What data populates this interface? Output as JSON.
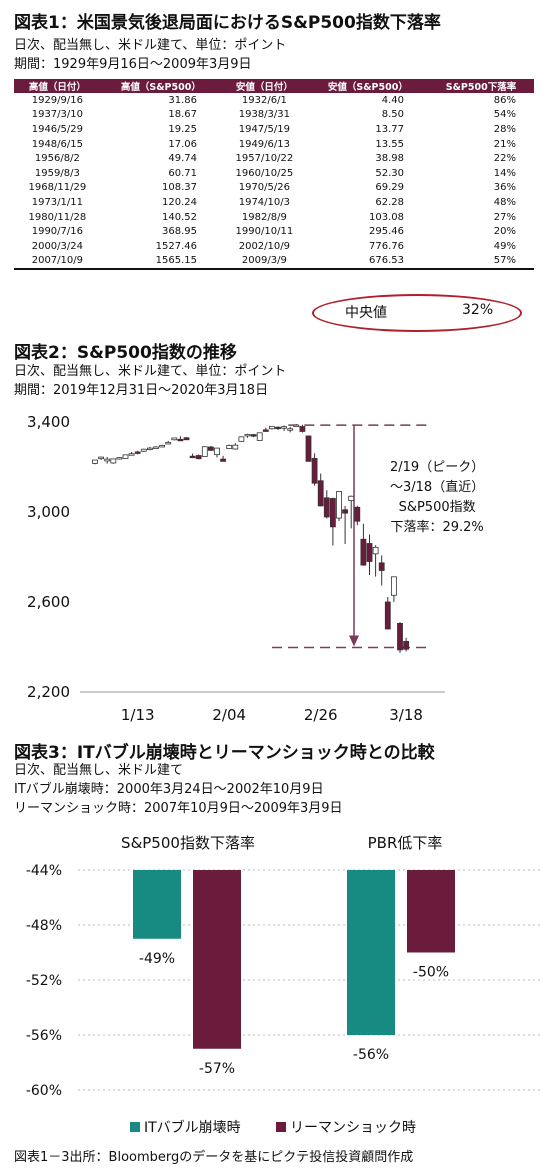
{
  "fig1": {
    "title": "図表1：米国景気後退局面におけるS&P500指数下落率",
    "sub1": "日次、配当無し、米ドル建て、単位：ポイント",
    "sub2": "期間：1929年9月16日～2009年3月9日",
    "headers": [
      "高値（日付）",
      "高値（S&P500）",
      "安値（日付）",
      "安値（S&P500）",
      "S&P500下落率"
    ],
    "rows": [
      [
        "1929/9/16",
        "31.86",
        "1932/6/1",
        "4.40",
        "86%"
      ],
      [
        "1937/3/10",
        "18.67",
        "1938/3/31",
        "8.50",
        "54%"
      ],
      [
        "1946/5/29",
        "19.25",
        "1947/5/19",
        "13.77",
        "28%"
      ],
      [
        "1948/6/15",
        "17.06",
        "1949/6/13",
        "13.55",
        "21%"
      ],
      [
        "1956/8/2",
        "49.74",
        "1957/10/22",
        "38.98",
        "22%"
      ],
      [
        "1959/8/3",
        "60.71",
        "1960/10/25",
        "52.30",
        "14%"
      ],
      [
        "1968/11/29",
        "108.37",
        "1970/5/26",
        "69.29",
        "36%"
      ],
      [
        "1973/1/11",
        "120.24",
        "1974/10/3",
        "62.28",
        "48%"
      ],
      [
        "1980/11/28",
        "140.52",
        "1982/8/9",
        "103.08",
        "27%"
      ],
      [
        "1990/7/16",
        "368.95",
        "1990/10/11",
        "295.46",
        "20%"
      ],
      [
        "2000/3/24",
        "1527.46",
        "2002/10/9",
        "776.76",
        "49%"
      ],
      [
        "2007/10/9",
        "1565.15",
        "2009/3/9",
        "676.53",
        "57%"
      ]
    ],
    "median_label": "中央値",
    "median_value": "32%"
  },
  "fig2": {
    "title": "図表2：S&P500指数の推移",
    "sub1": "日次、配当無し、米ドル建て、単位：ポイント",
    "sub2": "期間：2019年12月31日～2020年3月18日",
    "annotation": [
      "2/19（ピーク）",
      "～3/18（直近）",
      "S&P500指数",
      "下落率：29.2%"
    ]
  },
  "fig3": {
    "title": "図表3：ITバブル崩壊時とリーマンショック時との比較",
    "sub1": "日次、配当無し、米ドル建て",
    "sub2": "ITバブル崩壊時：2000年3月24日～2002年10月9日",
    "sub3": "リーマンショック時：2007年10月9日～2009年3月9日",
    "legend": [
      "ITバブル崩壊時",
      "リーマンショック時"
    ]
  },
  "source": "図表1－3出所：Bloombergのデータを基にピクテ投信投資顧問作成",
  "colors": {
    "accent": "#6b1b3b",
    "teal": "#178a82",
    "median_ring": "#b0202a",
    "dashed": "#7a3a5a"
  },
  "chart_data": [
    {
      "type": "candlestick",
      "x_tick_labels": [
        "1/13",
        "2/04",
        "2/26",
        "3/18"
      ],
      "ylim": [
        2200,
        3400
      ],
      "y_ticks": [
        2200,
        2600,
        3000,
        3400
      ],
      "y_tick_labels": [
        "2,200",
        "2,600",
        "3,000",
        "3,400"
      ],
      "peak_level": 3386,
      "trough_level": 2398,
      "candles": [
        [
          3216,
          3231,
          3212,
          3231
        ],
        [
          3237,
          3246,
          3231,
          3244
        ],
        [
          3227,
          3245,
          3215,
          3235
        ],
        [
          3218,
          3238,
          3214,
          3236
        ],
        [
          3242,
          3244,
          3233,
          3242
        ],
        [
          3238,
          3254,
          3237,
          3254
        ],
        [
          3257,
          3267,
          3254,
          3259
        ],
        [
          3267,
          3272,
          3256,
          3266
        ],
        [
          3270,
          3282,
          3267,
          3279
        ],
        [
          3281,
          3289,
          3274,
          3284
        ],
        [
          3286,
          3293,
          3285,
          3289
        ],
        [
          3289,
          3299,
          3289,
          3296
        ],
        [
          3304,
          3316,
          3302,
          3309
        ],
        [
          3321,
          3330,
          3318,
          3329
        ],
        [
          3323,
          3337,
          3321,
          3321
        ],
        [
          3330,
          3333,
          3320,
          3321
        ],
        [
          3248,
          3260,
          3242,
          3244
        ],
        [
          3251,
          3256,
          3234,
          3237
        ],
        [
          3247,
          3292,
          3247,
          3290
        ],
        [
          3289,
          3293,
          3271,
          3274
        ],
        [
          3255,
          3285,
          3243,
          3284
        ],
        [
          3235,
          3250,
          3225,
          3225
        ],
        [
          3282,
          3300,
          3282,
          3296
        ],
        [
          3280,
          3306,
          3277,
          3297
        ],
        [
          3314,
          3335,
          3312,
          3334
        ],
        [
          3344,
          3348,
          3330,
          3345
        ],
        [
          3344,
          3347,
          3332,
          3337
        ],
        [
          3318,
          3353,
          3318,
          3352
        ],
        [
          3365,
          3375,
          3358,
          3358
        ],
        [
          3370,
          3381,
          3366,
          3380
        ],
        [
          3377,
          3380,
          3364,
          3373
        ],
        [
          3379,
          3385,
          3360,
          3379
        ],
        [
          3370,
          3379,
          3354,
          3370
        ],
        [
          3381,
          3391,
          3378,
          3386
        ],
        [
          3380,
          3388,
          3353,
          3358
        ],
        [
          3338,
          3338,
          3225,
          3225
        ],
        [
          3238,
          3261,
          3117,
          3128
        ],
        [
          3139,
          3171,
          3025,
          3027
        ],
        [
          3063,
          3097,
          2971,
          2978
        ],
        [
          3060,
          3064,
          2851,
          2934
        ],
        [
          2973,
          3091,
          2960,
          3091
        ],
        [
          3010,
          3027,
          2858,
          2995
        ],
        [
          3051,
          3073,
          2927,
          3070
        ],
        [
          3021,
          3028,
          2941,
          2959
        ],
        [
          2879,
          2948,
          2761,
          2764
        ],
        [
          2860,
          2900,
          2720,
          2780
        ],
        [
          2814,
          2852,
          2713,
          2843
        ],
        [
          2774,
          2807,
          2673,
          2740
        ],
        [
          2600,
          2622,
          2478,
          2480
        ],
        [
          2630,
          2712,
          2600,
          2712
        ],
        [
          2505,
          2510,
          2374,
          2387
        ],
        [
          2425,
          2441,
          2380,
          2390
        ]
      ]
    },
    {
      "type": "bar",
      "categories": [
        "S&P500指数下落率",
        "PBR低下率"
      ],
      "series": [
        {
          "name": "ITバブル崩壊時",
          "values": [
            -49,
            -56
          ]
        },
        {
          "name": "リーマンショック時",
          "values": [
            -57,
            -50
          ]
        }
      ],
      "data_labels": [
        [
          "-49%",
          "-56%"
        ],
        [
          "-57%",
          "-50%"
        ]
      ],
      "ylim": [
        -60,
        -44
      ],
      "y_ticks": [
        -44,
        -48,
        -52,
        -56,
        -60
      ],
      "y_tick_labels": [
        "-44%",
        "-48%",
        "-52%",
        "-56%",
        "-60%"
      ],
      "legend_position": "bottom"
    }
  ]
}
